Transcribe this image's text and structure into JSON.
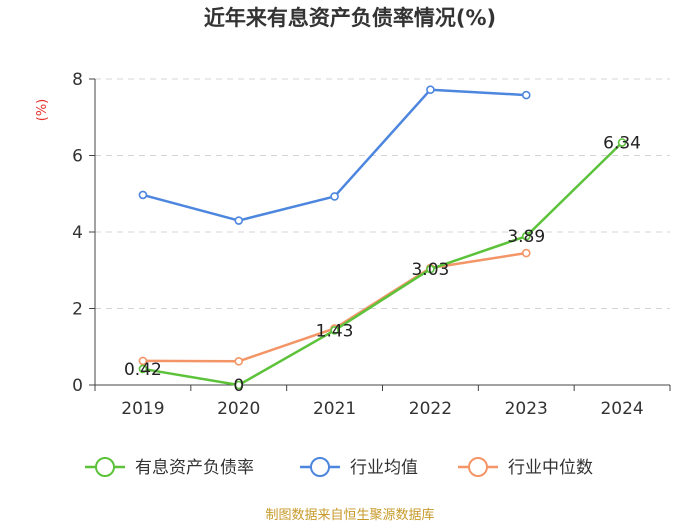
{
  "chart_data": {
    "type": "line",
    "title": "近年来有息资产负债率情况(%)",
    "unit_label": "(%)",
    "categories": [
      "2019",
      "2020",
      "2021",
      "2022",
      "2023",
      "2024"
    ],
    "ylim": [
      0,
      8
    ],
    "yticks": [
      0,
      2,
      4,
      6,
      8
    ],
    "grid": true,
    "legend_position": "bottom",
    "series": [
      {
        "name": "有息资产负债率",
        "color": "#5cc23a",
        "values": [
          0.42,
          0,
          1.43,
          3.03,
          3.89,
          6.34
        ],
        "labels": [
          "0.42",
          "0",
          "1.43",
          "3.03",
          "3.89",
          "6.34"
        ]
      },
      {
        "name": "行业均值",
        "color": "#4d86de",
        "values": [
          4.97,
          4.3,
          4.93,
          7.72,
          7.58,
          null
        ],
        "labels": []
      },
      {
        "name": "行业中位数",
        "color": "#f39566",
        "values": [
          0.63,
          0.62,
          1.48,
          3.06,
          3.45,
          null
        ],
        "labels": []
      }
    ],
    "source": "制图数据来自恒生聚源数据库"
  }
}
